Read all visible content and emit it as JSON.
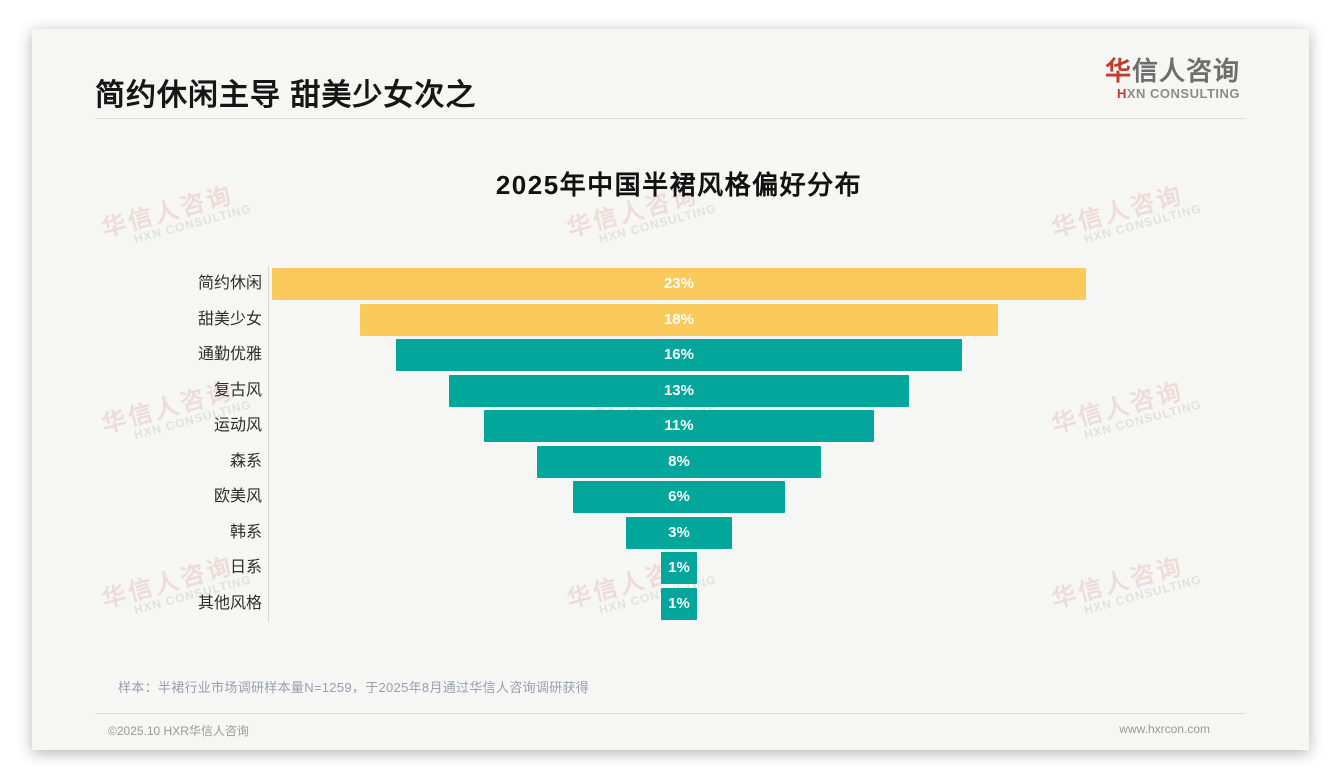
{
  "header": {
    "title": "简约休闲主导 甜美少女次之",
    "logo": {
      "cn_first": "华",
      "cn_rest": "信人咨询",
      "en_first": "H",
      "en_rest": "XN CONSULTING"
    }
  },
  "chart_data": {
    "type": "bar",
    "title": "2025年中国半裙风格偏好分布",
    "orientation": "horizontal-centered-funnel",
    "unit": "%",
    "categories": [
      "简约休闲",
      "甜美少女",
      "通勤优雅",
      "复古风",
      "运动风",
      "森系",
      "欧美风",
      "韩系",
      "日系",
      "其他风格"
    ],
    "values": [
      23,
      18,
      16,
      13,
      11,
      8,
      6,
      3,
      1,
      1
    ],
    "value_labels": [
      "23%",
      "18%",
      "16%",
      "13%",
      "11%",
      "8%",
      "6%",
      "3%",
      "1%",
      "1%"
    ],
    "bar_colors": [
      "#facb5c",
      "#facb5c",
      "#02a69b",
      "#02a69b",
      "#02a69b",
      "#02a69b",
      "#02a69b",
      "#02a69b",
      "#02a69b",
      "#02a69b"
    ],
    "highlight_color": "#facb5c",
    "base_color": "#02a69b",
    "value_label_color": "#ffffff",
    "legend": "none",
    "grid": "off",
    "xlim": [
      0,
      23
    ]
  },
  "footnote": "样本：半裙行业市场调研样本量N=1259，于2025年8月通过华信人咨询调研获得",
  "footer": {
    "copyright": "©2025.10 HXR华信人咨询",
    "website": "www.hxrcon.com"
  },
  "watermark": {
    "cn": "华信人咨询",
    "en": "HXN CONSULTING"
  }
}
